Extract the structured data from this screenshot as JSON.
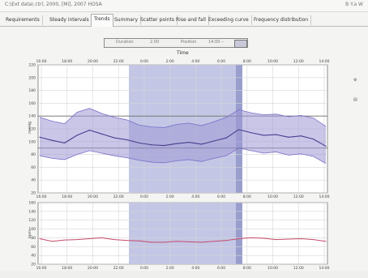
{
  "window": {
    "title": "C:\\Ext data\\   ctrl, 2000, [Mi], 2007 HOSA",
    "right_text": "B Y.a W"
  },
  "tabs": [
    {
      "label": "Requirements"
    },
    {
      "label": "Steady intervals"
    },
    {
      "label": "Trends"
    },
    {
      "label": "Summary"
    },
    {
      "label": "Scatter points"
    },
    {
      "label": "Rise and fall"
    },
    {
      "label": "Exceeding curve"
    },
    {
      "label": "Frequency distribution"
    }
  ],
  "active_tab": "Trends",
  "slider": {
    "labels": [
      "Duration",
      "2.00",
      "Position",
      "14:00 --"
    ]
  },
  "time_axis_label": "Time",
  "time_ticks": [
    "16:00",
    "18:00",
    "20:00",
    "22:00",
    "0:00",
    "2:00",
    "4:00",
    "6:00",
    "8:00",
    "10:00",
    "12:00",
    "14:00"
  ],
  "top_chart": {
    "ylabel": "mmHg",
    "yticks": [
      "220",
      "200",
      "180",
      "160",
      "140",
      "120",
      "100",
      "80",
      "60",
      "40",
      "20"
    ]
  },
  "bottom_chart": {
    "ylabel": "bpm",
    "yticks": [
      "160",
      "140",
      "120",
      "100",
      "80",
      "60",
      "40",
      "20"
    ]
  },
  "colors": {
    "band": "#9f97d6",
    "band_line": "#7a6fc9",
    "night": "#b9bde0",
    "mean_line": "#4a3f8e",
    "heart_rate": "#c64a6a",
    "ref_line": "#6b6b6b"
  },
  "side_icons": [
    "gear-icon",
    "legend-icon"
  ],
  "chart_data": [
    {
      "type": "line",
      "xlabel": "Time",
      "ylabel": "mmHg",
      "ylim": [
        20,
        220
      ],
      "x": [
        "16:00",
        "17:00",
        "18:00",
        "19:00",
        "20:00",
        "21:00",
        "22:00",
        "23:00",
        "0:00",
        "1:00",
        "2:00",
        "3:00",
        "4:00",
        "5:00",
        "6:00",
        "7:00",
        "8:00",
        "9:00",
        "10:00",
        "11:00",
        "12:00",
        "13:00",
        "14:00",
        "15:00"
      ],
      "series": [
        {
          "values": [
            107,
            102,
            98,
            110,
            118,
            112,
            106,
            103,
            98,
            95,
            94,
            97,
            99,
            96,
            101,
            106,
            119,
            114,
            110,
            111,
            107,
            109,
            104,
            93
          ]
        },
        {
          "values": [
            138,
            132,
            128,
            146,
            152,
            144,
            138,
            134,
            126,
            123,
            122,
            127,
            129,
            125,
            131,
            138,
            150,
            145,
            142,
            143,
            139,
            141,
            137,
            124
          ]
        },
        {
          "values": [
            78,
            74,
            72,
            80,
            86,
            82,
            78,
            75,
            71,
            68,
            67,
            70,
            72,
            69,
            74,
            78,
            90,
            86,
            82,
            84,
            79,
            81,
            77,
            66
          ]
        }
      ]
    },
    {
      "type": "line",
      "xlabel": "Time",
      "ylabel": "bpm",
      "ylim": [
        20,
        160
      ],
      "x": [
        "16:00",
        "17:00",
        "18:00",
        "19:00",
        "20:00",
        "21:00",
        "22:00",
        "23:00",
        "0:00",
        "1:00",
        "2:00",
        "3:00",
        "4:00",
        "5:00",
        "6:00",
        "7:00",
        "8:00",
        "9:00",
        "10:00",
        "11:00",
        "12:00",
        "13:00",
        "14:00",
        "15:00"
      ],
      "series": [
        {
          "values": [
            78,
            72,
            75,
            76,
            78,
            80,
            76,
            74,
            73,
            70,
            70,
            72,
            71,
            70,
            72,
            74,
            78,
            80,
            79,
            76,
            77,
            78,
            76,
            72
          ]
        }
      ]
    }
  ]
}
